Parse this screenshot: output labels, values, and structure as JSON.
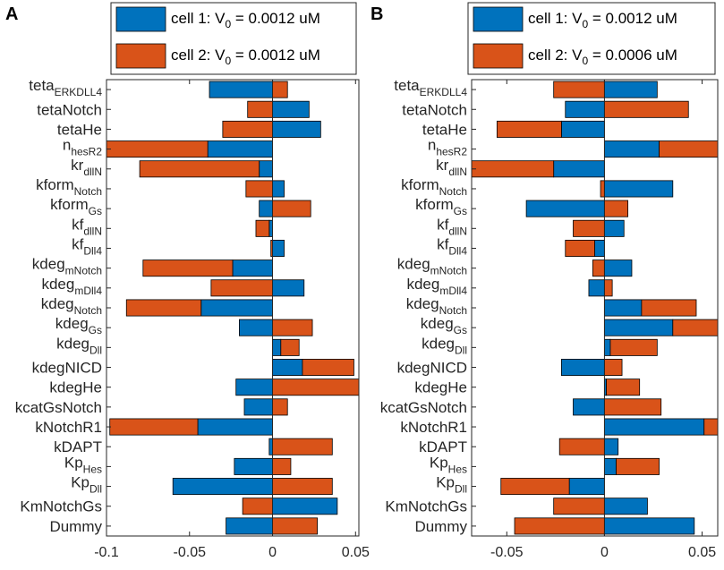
{
  "colors": {
    "cell1": "#0072BD",
    "cell2": "#D95319",
    "axis": "#262626",
    "background": "#ffffff"
  },
  "chart_data": [
    {
      "panel_label": "A",
      "type": "bar",
      "orientation": "horizontal",
      "grouping": "stacked",
      "xlim": [
        -0.1,
        0.052
      ],
      "xticks": [
        -0.1,
        -0.05,
        0,
        0.05
      ],
      "xtick_labels": [
        "-0.1",
        "-0.05",
        "0",
        "0.05"
      ],
      "legend": {
        "placement": "top",
        "entries": [
          {
            "label": "cell 1: V",
            "subscript": "0",
            "suffix": " = 0.0012 uM",
            "color": "#0072BD"
          },
          {
            "label": "cell 2: V",
            "subscript": "0",
            "suffix": " = 0.0012 uM",
            "color": "#D95319"
          }
        ]
      },
      "categories": [
        {
          "base": "teta",
          "sub": "ERKDLL4"
        },
        {
          "base": "tetaNotch",
          "sub": ""
        },
        {
          "base": "tetaHe",
          "sub": ""
        },
        {
          "base": "n",
          "sub": "hesR2"
        },
        {
          "base": "kr",
          "sub": "dllN"
        },
        {
          "base": "kform",
          "sub": "Notch"
        },
        {
          "base": "kform",
          "sub": "Gs"
        },
        {
          "base": "kf",
          "sub": "dllN"
        },
        {
          "base": "kf",
          "sub": "Dll4"
        },
        {
          "base": "kdeg",
          "sub": "mNotch"
        },
        {
          "base": "kdeg",
          "sub": "mDll4"
        },
        {
          "base": "kdeg",
          "sub": "Notch"
        },
        {
          "base": "kdeg",
          "sub": "Gs"
        },
        {
          "base": "kdeg",
          "sub": "Dll"
        },
        {
          "base": "kdegNICD",
          "sub": ""
        },
        {
          "base": "kdegHe",
          "sub": ""
        },
        {
          "base": "kcatGsNotch",
          "sub": ""
        },
        {
          "base": "kNotchR1",
          "sub": ""
        },
        {
          "base": "kDAPT",
          "sub": ""
        },
        {
          "base": "Kp",
          "sub": "Hes"
        },
        {
          "base": "Kp",
          "sub": "Dll"
        },
        {
          "base": "KmNotchGs",
          "sub": ""
        },
        {
          "base": "Dummy",
          "sub": ""
        }
      ],
      "series": [
        {
          "name": "cell 1",
          "values": [
            -0.038,
            0.022,
            0.029,
            -0.039,
            -0.008,
            0.007,
            -0.008,
            -0.002,
            0.007,
            -0.024,
            0.019,
            -0.043,
            -0.02,
            0.005,
            0.018,
            -0.022,
            -0.017,
            -0.045,
            -0.002,
            -0.023,
            -0.06,
            0.039,
            -0.028
          ]
        },
        {
          "name": "cell 2",
          "values": [
            0.009,
            -0.015,
            -0.03,
            -0.072,
            -0.072,
            -0.016,
            0.023,
            -0.008,
            -0.001,
            -0.054,
            -0.037,
            -0.045,
            0.024,
            0.011,
            0.031,
            0.052,
            0.009,
            -0.053,
            0.036,
            0.011,
            0.036,
            -0.018,
            0.027
          ]
        }
      ]
    },
    {
      "panel_label": "B",
      "type": "bar",
      "orientation": "horizontal",
      "grouping": "stacked",
      "xlim": [
        -0.068,
        0.058
      ],
      "xticks": [
        -0.05,
        0,
        0.05
      ],
      "xtick_labels": [
        "-0.05",
        "0",
        "0.05"
      ],
      "legend": {
        "placement": "top",
        "entries": [
          {
            "label": "cell 1: V",
            "subscript": "0",
            "suffix": " = 0.0012 uM",
            "color": "#0072BD"
          },
          {
            "label": "cell 2: V",
            "subscript": "0",
            "suffix": " = 0.0006 uM",
            "color": "#D95319"
          }
        ]
      },
      "categories": [
        {
          "base": "teta",
          "sub": "ERKDLL4"
        },
        {
          "base": "tetaNotch",
          "sub": ""
        },
        {
          "base": "tetaHe",
          "sub": ""
        },
        {
          "base": "n",
          "sub": "hesR2"
        },
        {
          "base": "kr",
          "sub": "dllN"
        },
        {
          "base": "kform",
          "sub": "Notch"
        },
        {
          "base": "kform",
          "sub": "Gs"
        },
        {
          "base": "kf",
          "sub": "dllN"
        },
        {
          "base": "kf",
          "sub": "Dll4"
        },
        {
          "base": "kdeg",
          "sub": "mNotch"
        },
        {
          "base": "kdeg",
          "sub": "mDll4"
        },
        {
          "base": "kdeg",
          "sub": "Notch"
        },
        {
          "base": "kdeg",
          "sub": "Gs"
        },
        {
          "base": "kdeg",
          "sub": "Dll"
        },
        {
          "base": "kdegNICD",
          "sub": ""
        },
        {
          "base": "kdegHe",
          "sub": ""
        },
        {
          "base": "kcatGsNotch",
          "sub": ""
        },
        {
          "base": "kNotchR1",
          "sub": ""
        },
        {
          "base": "kDAPT",
          "sub": ""
        },
        {
          "base": "Kp",
          "sub": "Hes"
        },
        {
          "base": "Kp",
          "sub": "Dll"
        },
        {
          "base": "KmNotchGs",
          "sub": ""
        },
        {
          "base": "Dummy",
          "sub": ""
        }
      ],
      "series": [
        {
          "name": "cell 1",
          "values": [
            0.027,
            -0.02,
            -0.022,
            0.028,
            -0.026,
            0.035,
            -0.04,
            0.01,
            -0.005,
            0.014,
            -0.008,
            0.019,
            0.035,
            0.003,
            -0.022,
            0.001,
            -0.016,
            0.051,
            0.007,
            0.006,
            -0.018,
            0.022,
            0.046
          ]
        },
        {
          "name": "cell 2",
          "values": [
            -0.026,
            0.043,
            -0.033,
            0.037,
            -0.068,
            -0.002,
            0.012,
            -0.016,
            -0.015,
            -0.006,
            0.004,
            0.028,
            0.042,
            0.024,
            0.009,
            0.017,
            0.029,
            0.06,
            -0.023,
            0.022,
            -0.035,
            -0.026,
            -0.046
          ]
        }
      ]
    }
  ]
}
